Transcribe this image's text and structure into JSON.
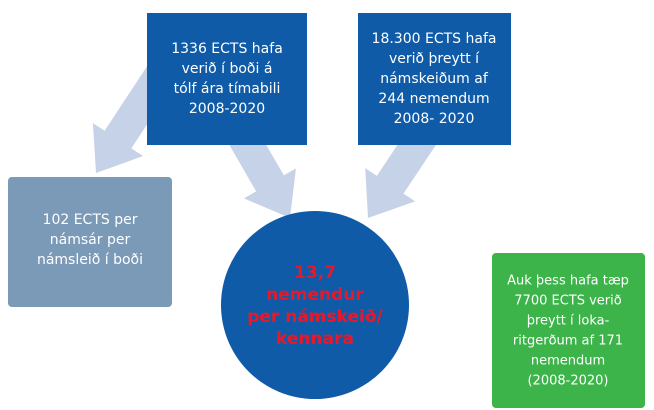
{
  "boxes": [
    {
      "lines": [
        "1336 ECTS hafa",
        "verið í boði á",
        "tólf ára tímabili",
        "2008-2020"
      ]
    },
    {
      "lines": [
        "18.300 ECTS hafa",
        "verið þreytt í",
        "námskeiðum af",
        "244 nemendum",
        "2008- 2020"
      ]
    },
    {
      "lines": [
        "102 ECTS per",
        "námsár per",
        "námsleið í boði"
      ]
    },
    {
      "lines": [
        "13,7",
        "nemendur",
        "per námskeið/",
        "kennara"
      ]
    },
    {
      "lines": [
        "Auk þess hafa tæp",
        "7700 ECTS verið",
        "þreytt í loka-",
        "ritgerðum af 171",
        "nemendum",
        "(2008-2020)"
      ]
    }
  ]
}
